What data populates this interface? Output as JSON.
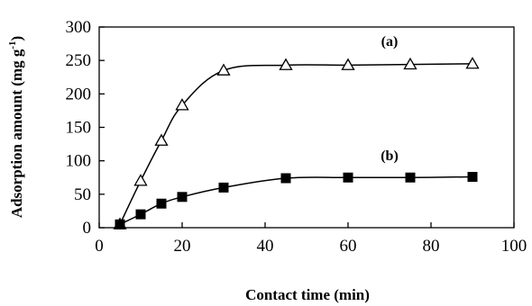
{
  "chart_data": {
    "type": "scatter",
    "title": "",
    "xlabel": "Contact time (min)",
    "ylabel": {
      "main": "Adsorption amount (mg g",
      "sup": "-1",
      "close": ")"
    },
    "xlim": [
      0,
      100
    ],
    "ylim": [
      0,
      300
    ],
    "x_ticks": [
      0,
      20,
      40,
      60,
      80,
      100
    ],
    "y_ticks": [
      0,
      50,
      100,
      150,
      200,
      250,
      300
    ],
    "grid": false,
    "legend": "none",
    "series": [
      {
        "name": "(a)",
        "marker": "open-triangle",
        "color": "#000000",
        "x": [
          5,
          10,
          15,
          20,
          30,
          45,
          60,
          75,
          90
        ],
        "y": [
          5,
          70,
          130,
          183,
          235,
          243,
          243,
          244,
          245
        ]
      },
      {
        "name": "(b)",
        "marker": "filled-square",
        "color": "#000000",
        "x": [
          5,
          10,
          15,
          20,
          30,
          45,
          60,
          75,
          90
        ],
        "y": [
          5,
          20,
          36,
          46,
          60,
          74,
          75,
          75,
          76
        ]
      }
    ]
  }
}
